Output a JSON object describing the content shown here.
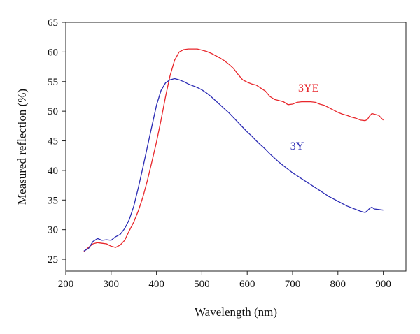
{
  "chart_data": {
    "type": "line",
    "title": "",
    "xlabel": "Wavelength (nm)",
    "ylabel": "Measured reflection (%)",
    "xlim": [
      200,
      950
    ],
    "ylim": [
      23,
      65
    ],
    "x_ticks": [
      200,
      300,
      400,
      500,
      600,
      700,
      800,
      900
    ],
    "y_ticks": [
      25,
      30,
      35,
      40,
      45,
      50,
      55,
      60,
      65
    ],
    "grid": false,
    "series": [
      {
        "name": "3YE",
        "color": "#e8262b",
        "label_at": [
          735,
          53.3
        ],
        "x": [
          240,
          250,
          260,
          270,
          280,
          290,
          300,
          310,
          320,
          330,
          340,
          350,
          360,
          370,
          380,
          390,
          400,
          410,
          420,
          430,
          440,
          450,
          460,
          470,
          480,
          490,
          500,
          510,
          520,
          530,
          540,
          550,
          560,
          570,
          580,
          590,
          600,
          610,
          620,
          630,
          640,
          650,
          660,
          670,
          680,
          690,
          700,
          710,
          720,
          730,
          740,
          750,
          760,
          770,
          780,
          790,
          800,
          810,
          820,
          830,
          840,
          850,
          860,
          865,
          870,
          875,
          880,
          890,
          900
        ],
        "y": [
          26.3,
          27.0,
          27.6,
          27.8,
          27.7,
          27.6,
          27.2,
          27.0,
          27.4,
          28.2,
          29.8,
          31.3,
          33.2,
          35.5,
          38.3,
          41.5,
          44.8,
          48.5,
          52.5,
          56.0,
          58.6,
          60.0,
          60.4,
          60.5,
          60.5,
          60.5,
          60.3,
          60.1,
          59.8,
          59.4,
          59.0,
          58.5,
          57.9,
          57.2,
          56.2,
          55.3,
          54.9,
          54.6,
          54.4,
          53.9,
          53.4,
          52.5,
          52.0,
          51.8,
          51.6,
          51.1,
          51.2,
          51.5,
          51.6,
          51.6,
          51.6,
          51.5,
          51.2,
          51.0,
          50.6,
          50.2,
          49.8,
          49.5,
          49.3,
          49.0,
          48.8,
          48.5,
          48.4,
          48.6,
          49.2,
          49.6,
          49.5,
          49.3,
          48.5
        ]
      },
      {
        "name": "3Y",
        "color": "#2b2bb4",
        "label_at": [
          710,
          43.5
        ],
        "x": [
          240,
          250,
          260,
          270,
          280,
          290,
          300,
          310,
          320,
          330,
          340,
          350,
          360,
          370,
          380,
          390,
          400,
          410,
          420,
          430,
          440,
          450,
          460,
          470,
          480,
          490,
          500,
          510,
          520,
          530,
          540,
          550,
          560,
          570,
          580,
          590,
          600,
          610,
          620,
          630,
          640,
          650,
          660,
          670,
          680,
          690,
          700,
          710,
          720,
          730,
          740,
          750,
          760,
          770,
          780,
          790,
          800,
          810,
          820,
          830,
          840,
          850,
          860,
          865,
          870,
          875,
          880,
          890,
          900
        ],
        "y": [
          26.4,
          26.8,
          28.0,
          28.5,
          28.2,
          28.3,
          28.2,
          28.8,
          29.2,
          30.2,
          31.7,
          34.0,
          37.1,
          40.5,
          44.0,
          47.5,
          51.0,
          53.5,
          54.8,
          55.3,
          55.5,
          55.3,
          55.0,
          54.6,
          54.3,
          54.0,
          53.6,
          53.1,
          52.5,
          51.8,
          51.1,
          50.4,
          49.7,
          48.9,
          48.1,
          47.3,
          46.5,
          45.8,
          45.0,
          44.3,
          43.6,
          42.8,
          42.1,
          41.4,
          40.8,
          40.2,
          39.6,
          39.1,
          38.6,
          38.1,
          37.6,
          37.1,
          36.6,
          36.1,
          35.6,
          35.2,
          34.8,
          34.4,
          34.0,
          33.7,
          33.4,
          33.1,
          32.9,
          33.2,
          33.6,
          33.8,
          33.5,
          33.4,
          33.3
        ]
      }
    ]
  }
}
